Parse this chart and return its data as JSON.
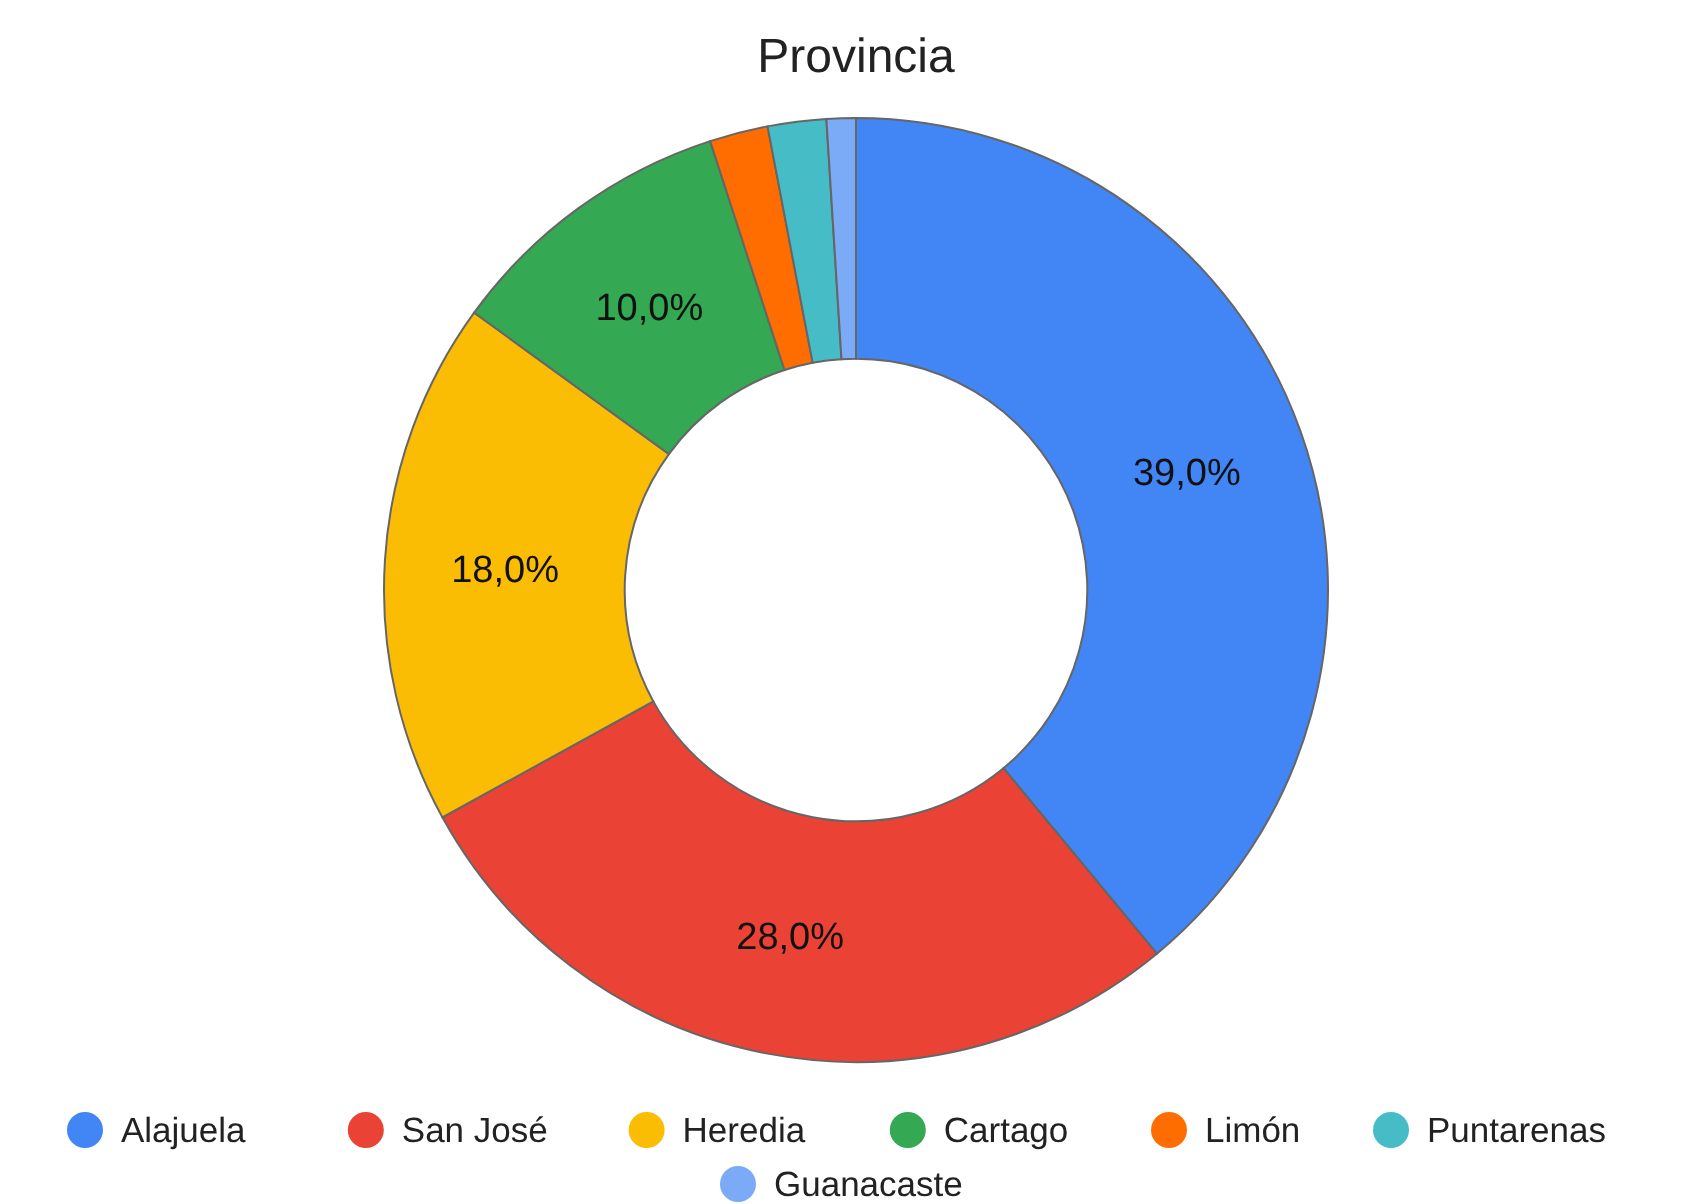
{
  "chart_data": {
    "type": "donut",
    "title": "Provincia",
    "categories": [
      "Alajuela",
      "San José",
      "Heredia",
      "Cartago",
      "Limón",
      "Puntarenas",
      "Guanacaste"
    ],
    "values": [
      39,
      28,
      18,
      10,
      2,
      2,
      1
    ],
    "value_labels": [
      "39,0%",
      "28,0%",
      "18,0%",
      "10,0%",
      null,
      null,
      null
    ],
    "colors": [
      "#4285f4",
      "#ea4335",
      "#fbbc04",
      "#34a853",
      "#ff6d01",
      "#46bdc6",
      "#7baaf7"
    ],
    "legend": "bottom"
  }
}
